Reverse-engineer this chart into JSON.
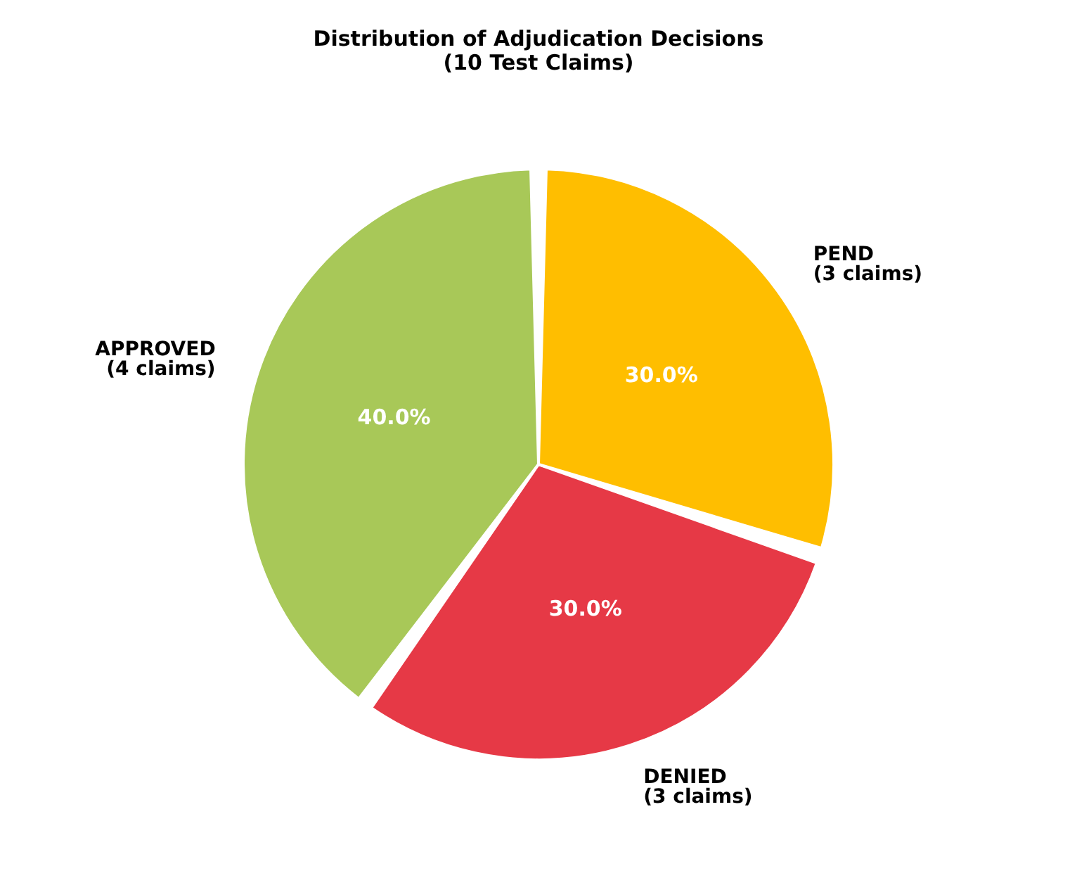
{
  "chart_data": {
    "type": "pie",
    "title": "Distribution of Adjudication Decisions\n(10 Test Claims)",
    "categories": [
      "APPROVED\n(4 claims)",
      "DENIED\n(3 claims)",
      "PEND\n(3 claims)"
    ],
    "values": [
      40.0,
      30.0,
      30.0
    ],
    "colors": [
      "#a8c858",
      "#e63946",
      "#ffbe00"
    ],
    "value_labels": [
      "40.0%",
      "30.0%",
      "30.0%"
    ],
    "legend": false
  }
}
